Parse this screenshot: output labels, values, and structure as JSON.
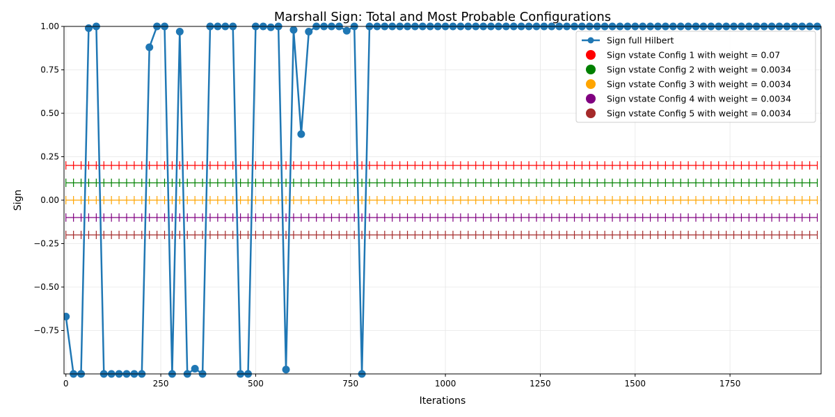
{
  "chart_data": {
    "type": "line",
    "title": "Marshall Sign: Total and Most Probable Configurations",
    "xlabel": "Iterations",
    "ylabel": "Sign",
    "xlim": [
      -5,
      1990
    ],
    "ylim": [
      -1.0,
      1.0
    ],
    "x_ticks": [
      0,
      250,
      500,
      750,
      1000,
      1250,
      1500,
      1750
    ],
    "y_ticks": [
      -0.75,
      -0.5,
      -0.25,
      0.0,
      0.25,
      0.5,
      0.75,
      1.0
    ],
    "x_tick_labels": [
      "0",
      "250",
      "500",
      "750",
      "1000",
      "1250",
      "1500",
      "1750"
    ],
    "y_tick_labels": [
      "−0.75",
      "−0.50",
      "−0.25",
      "0.00",
      "0.25",
      "0.50",
      "0.75",
      "1.00"
    ],
    "grid": true,
    "legend_position": "top-right",
    "series": [
      {
        "name": "Sign full Hilbert",
        "color": "#1f77b4",
        "marker": "circle",
        "x": [
          0,
          20,
          40,
          60,
          80,
          100,
          120,
          140,
          160,
          180,
          200,
          220,
          240,
          260,
          280,
          300,
          320,
          340,
          360,
          380,
          400,
          420,
          440,
          460,
          480,
          500,
          520,
          540,
          560,
          580,
          600,
          620,
          640,
          660,
          680,
          700,
          720,
          740,
          760,
          780,
          800,
          820,
          840,
          860,
          880,
          900,
          920,
          940,
          960,
          980,
          1000,
          1020,
          1040,
          1060,
          1080,
          1100,
          1120,
          1140,
          1160,
          1180,
          1200,
          1220,
          1240,
          1260,
          1280,
          1300,
          1320,
          1340,
          1360,
          1380,
          1400,
          1420,
          1440,
          1460,
          1480,
          1500,
          1520,
          1540,
          1560,
          1580,
          1600,
          1620,
          1640,
          1660,
          1680,
          1700,
          1720,
          1740,
          1760,
          1780,
          1800,
          1820,
          1840,
          1860,
          1880,
          1900,
          1920,
          1940,
          1960,
          1980
        ],
        "y": [
          -0.67,
          -1.0,
          -1.0,
          0.99,
          1.0,
          -1.0,
          -1.0,
          -1.0,
          -1.0,
          -1.0,
          -1.0,
          0.88,
          1.0,
          1.0,
          -1.0,
          0.97,
          -1.0,
          -0.97,
          -1.0,
          1.0,
          1.0,
          1.0,
          1.0,
          -1.0,
          -1.0,
          1.0,
          1.0,
          0.995,
          1.0,
          -0.975,
          0.98,
          0.38,
          0.97,
          1.0,
          1.0,
          1.0,
          1.0,
          0.975,
          1.0,
          -1.0,
          1.0,
          1.0,
          1.0,
          1.0,
          1.0,
          1.0,
          1.0,
          1.0,
          1.0,
          1.0,
          1.0,
          1.0,
          1.0,
          1.0,
          1.0,
          1.0,
          1.0,
          1.0,
          1.0,
          1.0,
          1.0,
          1.0,
          1.0,
          1.0,
          1.0,
          1.0,
          1.0,
          1.0,
          1.0,
          1.0,
          1.0,
          1.0,
          1.0,
          1.0,
          1.0,
          1.0,
          1.0,
          1.0,
          1.0,
          1.0,
          1.0,
          1.0,
          1.0,
          1.0,
          1.0,
          1.0,
          1.0,
          1.0,
          1.0,
          1.0,
          1.0,
          1.0,
          1.0,
          1.0,
          1.0,
          1.0,
          1.0,
          1.0,
          1.0,
          1.0
        ]
      },
      {
        "name": "Sign vstate Config 1 with weight = 0.07",
        "color": "#ff0000",
        "level": 0.2
      },
      {
        "name": "Sign vstate Config 2 with weight = 0.0034",
        "color": "#008000",
        "level": 0.1
      },
      {
        "name": "Sign vstate Config 3 with weight = 0.0034",
        "color": "#ffa500",
        "level": 0.0
      },
      {
        "name": "Sign vstate Config 4 with weight = 0.0034",
        "color": "#800080",
        "level": -0.1
      },
      {
        "name": "Sign vstate Config 5 with weight = 0.0034",
        "color": "#a52a2a",
        "level": -0.2
      }
    ]
  }
}
